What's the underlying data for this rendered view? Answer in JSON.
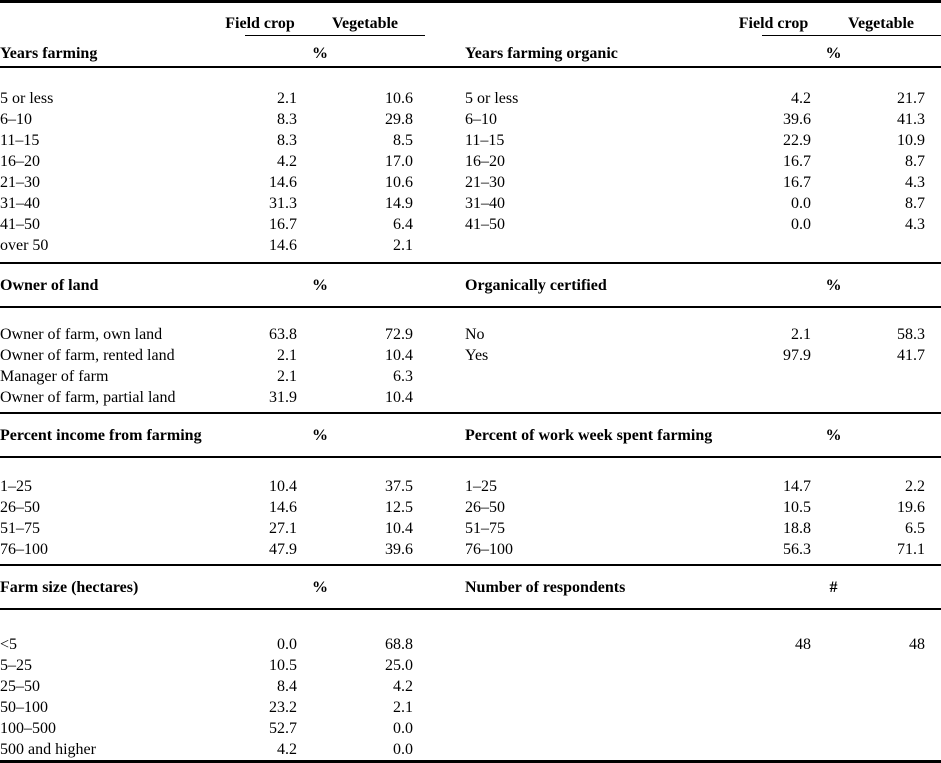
{
  "table": {
    "column_headers": {
      "field_crop": "Field crop",
      "vegetable": "Vegetable"
    },
    "sections": [
      {
        "left": {
          "title": "Years farming",
          "unit": "%",
          "rows": [
            {
              "label": "5 or less",
              "field_crop": "2.1",
              "vegetable": "10.6"
            },
            {
              "label": "6–10",
              "field_crop": "8.3",
              "vegetable": "29.8"
            },
            {
              "label": "11–15",
              "field_crop": "8.3",
              "vegetable": "8.5"
            },
            {
              "label": "16–20",
              "field_crop": "4.2",
              "vegetable": "17.0"
            },
            {
              "label": "21–30",
              "field_crop": "14.6",
              "vegetable": "10.6"
            },
            {
              "label": "31–40",
              "field_crop": "31.3",
              "vegetable": "14.9"
            },
            {
              "label": "41–50",
              "field_crop": "16.7",
              "vegetable": "6.4"
            },
            {
              "label": "over 50",
              "field_crop": "14.6",
              "vegetable": "2.1"
            }
          ]
        },
        "right": {
          "title": "Years farming organic",
          "unit": "%",
          "rows": [
            {
              "label": "5 or less",
              "field_crop": "4.2",
              "vegetable": "21.7"
            },
            {
              "label": "6–10",
              "field_crop": "39.6",
              "vegetable": "41.3"
            },
            {
              "label": "11–15",
              "field_crop": "22.9",
              "vegetable": "10.9"
            },
            {
              "label": "16–20",
              "field_crop": "16.7",
              "vegetable": "8.7"
            },
            {
              "label": "21–30",
              "field_crop": "16.7",
              "vegetable": "4.3"
            },
            {
              "label": "31–40",
              "field_crop": "0.0",
              "vegetable": "8.7"
            },
            {
              "label": "41–50",
              "field_crop": "0.0",
              "vegetable": "4.3"
            }
          ]
        }
      },
      {
        "left": {
          "title": "Owner of land",
          "unit": "%",
          "rows": [
            {
              "label": "Owner of farm, own land",
              "field_crop": "63.8",
              "vegetable": "72.9"
            },
            {
              "label": "Owner of farm, rented land",
              "field_crop": "2.1",
              "vegetable": "10.4"
            },
            {
              "label": "Manager of farm",
              "field_crop": "2.1",
              "vegetable": "6.3"
            },
            {
              "label": "Owner of farm, partial land",
              "field_crop": "31.9",
              "vegetable": "10.4"
            }
          ]
        },
        "right": {
          "title": "Organically certified",
          "unit": "%",
          "rows": [
            {
              "label": "No",
              "field_crop": "2.1",
              "vegetable": "58.3"
            },
            {
              "label": "Yes",
              "field_crop": "97.9",
              "vegetable": "41.7"
            }
          ]
        }
      },
      {
        "left": {
          "title": "Percent income from farming",
          "unit": "%",
          "rows": [
            {
              "label": "1–25",
              "field_crop": "10.4",
              "vegetable": "37.5"
            },
            {
              "label": "26–50",
              "field_crop": "14.6",
              "vegetable": "12.5"
            },
            {
              "label": "51–75",
              "field_crop": "27.1",
              "vegetable": "10.4"
            },
            {
              "label": "76–100",
              "field_crop": "47.9",
              "vegetable": "39.6"
            }
          ]
        },
        "right": {
          "title": "Percent of work week spent farming",
          "unit": "%",
          "rows": [
            {
              "label": "1–25",
              "field_crop": "14.7",
              "vegetable": "2.2"
            },
            {
              "label": "26–50",
              "field_crop": "10.5",
              "vegetable": "19.6"
            },
            {
              "label": "51–75",
              "field_crop": "18.8",
              "vegetable": "6.5"
            },
            {
              "label": "76–100",
              "field_crop": "56.3",
              "vegetable": "71.1"
            }
          ]
        }
      },
      {
        "left": {
          "title": "Farm size (hectares)",
          "unit": "%",
          "rows": [
            {
              "label": "<5",
              "field_crop": "0.0",
              "vegetable": "68.8"
            },
            {
              "label": "5–25",
              "field_crop": "10.5",
              "vegetable": "25.0"
            },
            {
              "label": "25–50",
              "field_crop": "8.4",
              "vegetable": "4.2"
            },
            {
              "label": "50–100",
              "field_crop": "23.2",
              "vegetable": "2.1"
            },
            {
              "label": "100–500",
              "field_crop": "52.7",
              "vegetable": "0.0"
            },
            {
              "label": "500 and higher",
              "field_crop": "4.2",
              "vegetable": "0.0"
            }
          ]
        },
        "right": {
          "title": "Number of respondents",
          "unit": "#",
          "rows": [
            {
              "label": "",
              "field_crop": "48",
              "vegetable": "48"
            }
          ]
        }
      }
    ]
  }
}
